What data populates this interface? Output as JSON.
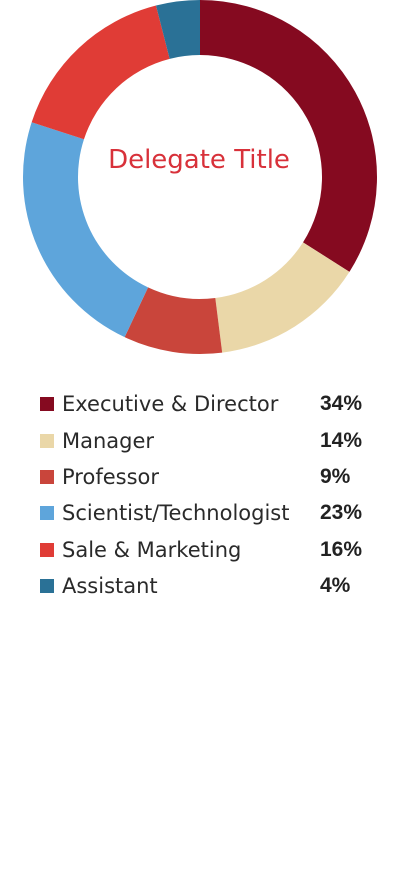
{
  "chart_data": {
    "type": "pie",
    "title": "Delegate Title",
    "categories": [
      "Executive & Director",
      "Manager",
      "Professor",
      "Scientist/Technologist",
      "Sale & Marketing",
      "Assistant"
    ],
    "values": [
      34,
      14,
      9,
      23,
      16,
      4
    ],
    "value_labels": [
      "34%",
      "14%",
      "9%",
      "23%",
      "16%",
      "4%"
    ],
    "colors": [
      "#850a20",
      "#ead7a8",
      "#c9453b",
      "#5ea5db",
      "#e03c36",
      "#2a7196"
    ],
    "legend_position": "bottom"
  }
}
